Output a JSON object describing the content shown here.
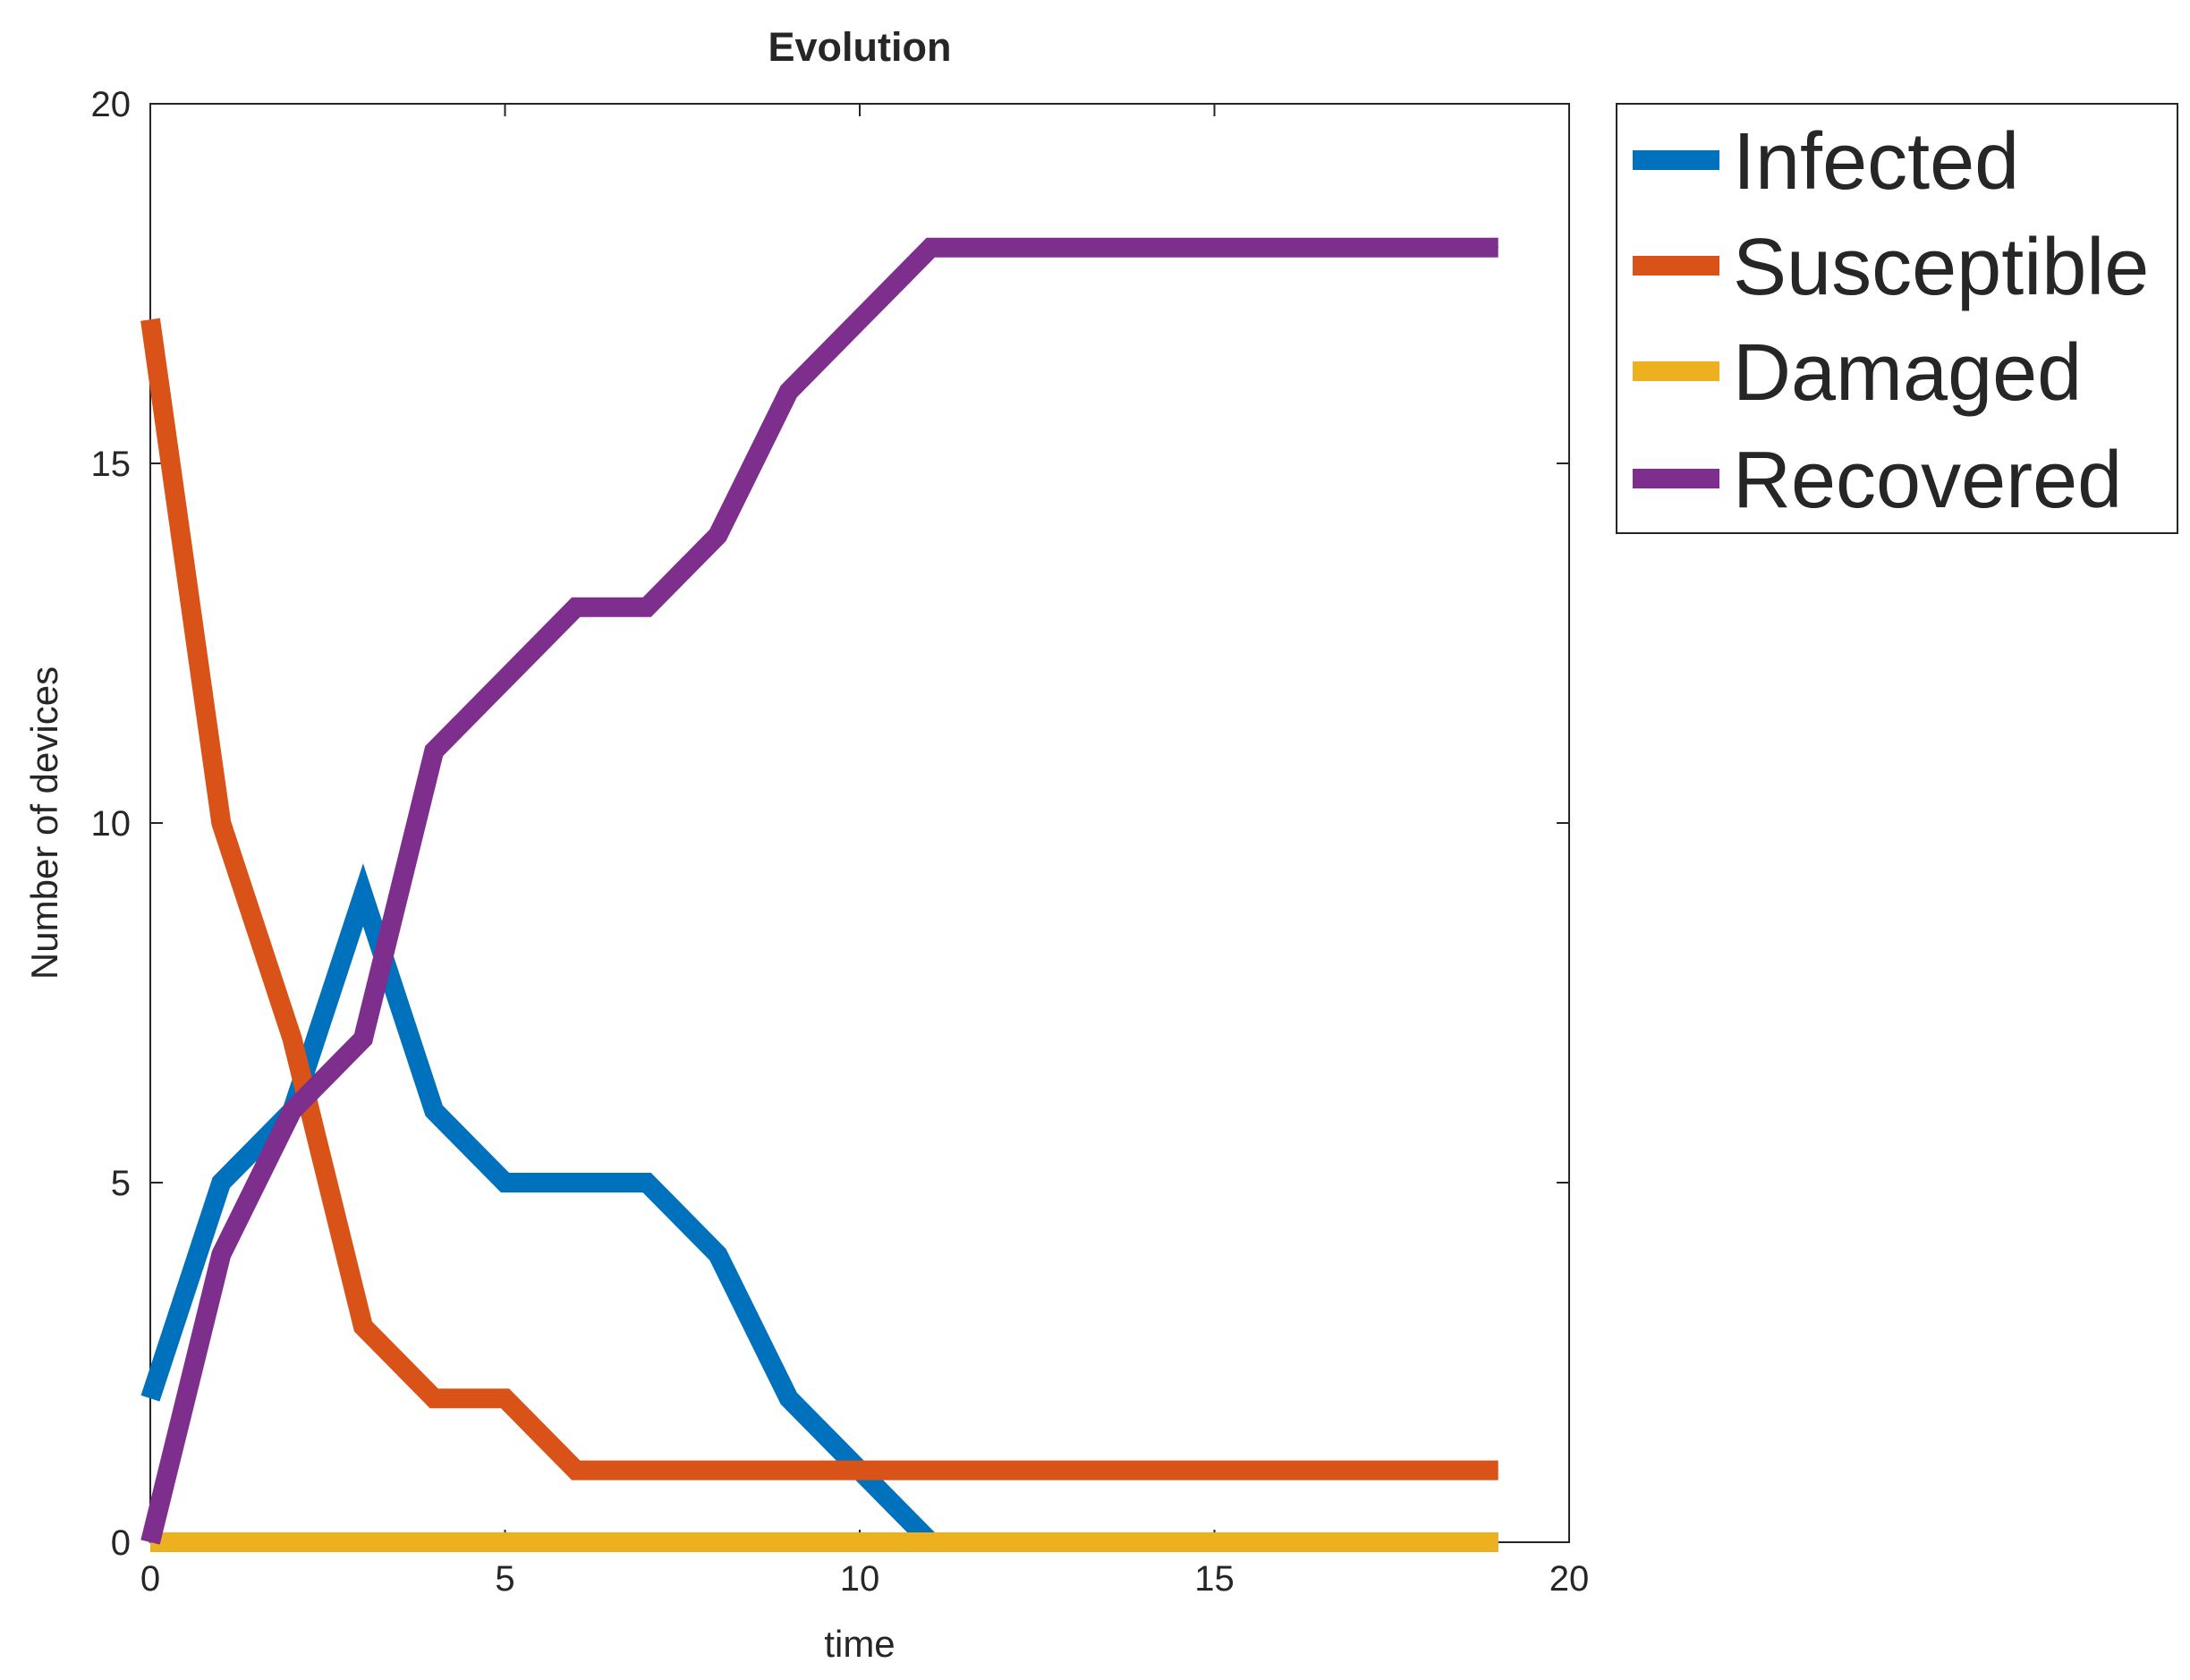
{
  "chart_data": {
    "type": "line",
    "title": "Evolution",
    "xlabel": "time",
    "ylabel": "Number of devices",
    "xlim": [
      0,
      20
    ],
    "ylim": [
      0,
      20
    ],
    "xticks": [
      0,
      5,
      10,
      15,
      20
    ],
    "yticks": [
      0,
      5,
      10,
      15,
      20
    ],
    "grid": false,
    "legend_position": "outside-top-right",
    "x": [
      0,
      1,
      2,
      3,
      4,
      5,
      6,
      7,
      8,
      9,
      10,
      11,
      12,
      13,
      14,
      15,
      16,
      17,
      18,
      19
    ],
    "series": [
      {
        "name": "Infected",
        "color": "#0072BD",
        "values": [
          2,
          5,
          6,
          9,
          6,
          5,
          5,
          5,
          4,
          2,
          1,
          0,
          0,
          0,
          0,
          0,
          0,
          0,
          0,
          0
        ]
      },
      {
        "name": "Susceptible",
        "color": "#D95319",
        "values": [
          17,
          10,
          7,
          3,
          2,
          2,
          1,
          1,
          1,
          1,
          1,
          1,
          1,
          1,
          1,
          1,
          1,
          1,
          1,
          1
        ]
      },
      {
        "name": "Damaged",
        "color": "#EDB120",
        "values": [
          0,
          0,
          0,
          0,
          0,
          0,
          0,
          0,
          0,
          0,
          0,
          0,
          0,
          0,
          0,
          0,
          0,
          0,
          0,
          0
        ]
      },
      {
        "name": "Recovered",
        "color": "#7E2F8E",
        "values": [
          0,
          4,
          6,
          7,
          11,
          12,
          13,
          13,
          14,
          16,
          17,
          18,
          18,
          18,
          18,
          18,
          18,
          18,
          18,
          18
        ]
      }
    ]
  }
}
